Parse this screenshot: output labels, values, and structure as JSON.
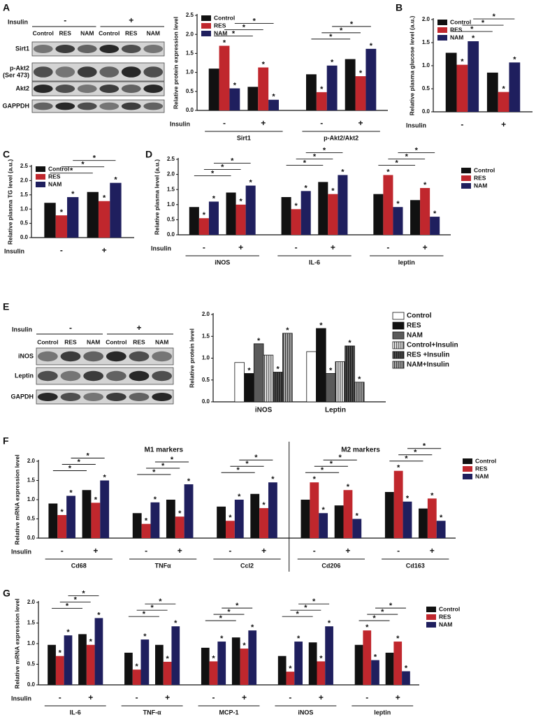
{
  "panel_labels": [
    "A",
    "B",
    "C",
    "D",
    "E",
    "F",
    "G"
  ],
  "blots": [
    {
      "insulin_label": "Insulin",
      "minus": "-",
      "plus": "+",
      "lanes": [
        "Control",
        "RES",
        "NAM",
        "Control",
        "RES",
        "NAM"
      ],
      "rows": [
        "Sirt1",
        [
          "p-Akt2",
          "(Ser 473)"
        ],
        "Akt2",
        "GAPPDH"
      ]
    },
    {
      "insulin_label": "Insulin",
      "minus": "-",
      "plus": "+",
      "lanes": [
        "Control",
        "RES",
        "NAM",
        "Control",
        "RES",
        "NAM"
      ],
      "rows": [
        "iNOS",
        "Leptin",
        "GAPDH"
      ]
    }
  ],
  "chart_data": [
    {
      "type": "bar",
      "y_label": "Relative protein expression level",
      "insulin_label": "Insulin",
      "categories": [
        "-",
        "+",
        "-",
        "+"
      ],
      "groups": [
        "Sirt1",
        "p-Akt2/Akt2"
      ],
      "series": [
        {
          "name": "Control",
          "color": "#111111",
          "values": [
            1.1,
            0.62,
            0.95,
            1.35
          ],
          "starred": false
        },
        {
          "name": "RES",
          "color": "#c0272d",
          "values": [
            1.7,
            1.13,
            0.48,
            0.9
          ],
          "starred": true
        },
        {
          "name": "NAM",
          "color": "#1f1f5e",
          "values": [
            0.58,
            0.28,
            1.18,
            1.62
          ],
          "starred": true
        }
      ],
      "ylim": [
        0,
        2.5
      ],
      "yticks": [
        {
          "value": 0,
          "label": "0.0"
        },
        0.5,
        {
          "value": 1,
          "label": "1.0"
        },
        1.5,
        {
          "value": 2,
          "label": "2.0"
        },
        2.5
      ],
      "legend": "upper left",
      "star": "*",
      "brackets": true
    },
    {
      "type": "bar",
      "y_label": "Relative plasma glucose level (a.u.)",
      "insulin_label": "Insulin",
      "categories": [
        "-",
        "+"
      ],
      "series": [
        {
          "name": "Control",
          "color": "#111111",
          "values": [
            1.28,
            0.85
          ],
          "starred": false
        },
        {
          "name": "RES",
          "color": "#c0272d",
          "values": [
            1.02,
            0.43
          ],
          "starred": true
        },
        {
          "name": "NAM",
          "color": "#1f1f5e",
          "values": [
            1.53,
            1.07
          ],
          "starred": true
        }
      ],
      "ylim": [
        0,
        2.0
      ],
      "yticks": [
        {
          "value": 0,
          "label": "0.0"
        },
        0.5,
        {
          "value": 1,
          "label": "1.0"
        },
        1.5,
        {
          "value": 2,
          "label": "2.0"
        }
      ],
      "legend": "upper left",
      "star": "*",
      "brackets": true
    },
    {
      "type": "bar",
      "y_label": "Relative plasma TG level (a.u.)",
      "insulin_label": "Insulin",
      "categories": [
        "-",
        "+"
      ],
      "series": [
        {
          "name": "Control",
          "color": "#111111",
          "values": [
            1.22,
            1.6
          ],
          "starred": false
        },
        {
          "name": "RES",
          "color": "#c0272d",
          "values": [
            0.78,
            1.28
          ],
          "starred": true
        },
        {
          "name": "NAM",
          "color": "#1f1f5e",
          "values": [
            1.42,
            1.92
          ],
          "starred": true
        }
      ],
      "ylim": [
        0,
        2.5
      ],
      "yticks": [
        {
          "value": 0,
          "label": "0.0"
        },
        0.5,
        {
          "value": 1,
          "label": "1.0"
        },
        1.5,
        {
          "value": 2,
          "label": "2.0"
        },
        2.5
      ],
      "legend": "upper left",
      "star": "*",
      "brackets": true
    },
    {
      "type": "bar",
      "y_label": "Relative plasma level (a.u.)",
      "insulin_label": "Insulin",
      "categories": [
        "-",
        "+",
        "-",
        "+",
        "-",
        "+"
      ],
      "groups": [
        "iNOS",
        "IL-6",
        "leptin"
      ],
      "series": [
        {
          "name": "Control",
          "color": "#111111",
          "values": [
            0.92,
            1.4,
            1.25,
            1.75,
            1.35,
            1.15
          ],
          "starred": false
        },
        {
          "name": "RES",
          "color": "#c0272d",
          "values": [
            0.55,
            1.0,
            0.85,
            1.35,
            1.98,
            1.55
          ],
          "starred": true
        },
        {
          "name": "NAM",
          "color": "#1f1f5e",
          "values": [
            1.1,
            1.63,
            1.45,
            1.98,
            0.92,
            0.6
          ],
          "starred": true
        }
      ],
      "ylim": [
        0,
        2.5
      ],
      "yticks": [
        {
          "value": 0,
          "label": "0.0"
        },
        0.5,
        {
          "value": 1,
          "label": "1.0"
        },
        1.5,
        {
          "value": 2,
          "label": "2.0"
        },
        2.5
      ],
      "legend": "right",
      "star": "*",
      "brackets": true
    },
    {
      "type": "bar",
      "y_label": "Relative protein level",
      "categories": [
        "iNOS",
        "Leptin"
      ],
      "series": [
        {
          "name": "Control",
          "color": "#ffffff",
          "values": [
            0.9,
            1.15
          ],
          "starred": false
        },
        {
          "name": "RES",
          "color": "#111111",
          "values": [
            0.65,
            1.68
          ],
          "starred": true
        },
        {
          "name": "NAM",
          "color": "#5a5a5a",
          "values": [
            1.33,
            0.65
          ],
          "starred": true
        },
        {
          "name": "Control+Insulin",
          "color": "#ffffff",
          "pattern": "stripes",
          "values": [
            1.07,
            0.92
          ],
          "starred": false
        },
        {
          "name": "RES +Insulin",
          "color": "#555555",
          "pattern": "stripes",
          "values": [
            0.68,
            1.28
          ],
          "starred": true
        },
        {
          "name": "NAM+Insulin",
          "color": "#bbbbbb",
          "pattern": "stripes",
          "values": [
            1.57,
            0.45
          ],
          "starred": true
        }
      ],
      "ylim": [
        0,
        2.0
      ],
      "yticks": [
        {
          "value": 0,
          "label": "0.0"
        },
        0.5,
        {
          "value": 1,
          "label": "1.0"
        },
        1.5,
        {
          "value": 2,
          "label": "2.0"
        }
      ],
      "legend": "right",
      "outline": true,
      "star": "*",
      "brackets": false
    },
    {
      "type": "bar",
      "y_label": "Relative mRNA expression level",
      "insulin_label": "Insulin",
      "categories": [
        "-",
        "+",
        "-",
        "+",
        "-",
        "+",
        "-",
        "+",
        "-",
        "+"
      ],
      "groups": [
        "Cd68",
        "TNFα",
        "Ccl2",
        "Cd206",
        "Cd163"
      ],
      "annotations": [
        "M1 markers",
        "M2 markers"
      ],
      "series": [
        {
          "name": "Control",
          "color": "#111111",
          "values": [
            0.9,
            1.25,
            0.65,
            1.0,
            0.82,
            1.15,
            1.0,
            0.85,
            1.2,
            0.77
          ],
          "starred": false
        },
        {
          "name": "RES",
          "color": "#c0272d",
          "values": [
            0.6,
            0.92,
            0.37,
            0.56,
            0.45,
            0.78,
            1.45,
            1.25,
            1.75,
            1.03
          ],
          "starred": true
        },
        {
          "name": "NAM",
          "color": "#1f1f5e",
          "values": [
            1.1,
            1.5,
            0.93,
            1.4,
            1.0,
            1.45,
            0.65,
            0.5,
            0.95,
            0.45
          ],
          "starred": true
        }
      ],
      "ylim": [
        0,
        2.0
      ],
      "yticks": [
        {
          "value": 0,
          "label": "0.0"
        },
        0.5,
        {
          "value": 1,
          "label": "1.0"
        },
        1.5,
        {
          "value": 2,
          "label": "2.0"
        }
      ],
      "legend": "right",
      "star": "*",
      "brackets": true
    },
    {
      "type": "bar",
      "y_label": "Relative mRNA expression level",
      "insulin_label": "Insulin",
      "categories": [
        "-",
        "+",
        "-",
        "+",
        "-",
        "+",
        "-",
        "+",
        "-",
        "+"
      ],
      "groups": [
        "IL-6",
        "TNF-α",
        "MCP-1",
        "iNOS",
        "leptin"
      ],
      "series": [
        {
          "name": "Control",
          "color": "#111111",
          "values": [
            0.97,
            1.23,
            0.78,
            0.97,
            0.9,
            1.15,
            0.7,
            1.03,
            0.97,
            0.78
          ],
          "starred": false
        },
        {
          "name": "RES",
          "color": "#c0272d",
          "values": [
            0.7,
            0.97,
            0.37,
            0.56,
            0.57,
            0.88,
            0.32,
            0.57,
            1.32,
            1.05
          ],
          "starred": true
        },
        {
          "name": "NAM",
          "color": "#1f1f5e",
          "values": [
            1.2,
            1.62,
            1.1,
            1.42,
            1.05,
            1.32,
            1.05,
            1.42,
            0.6,
            0.33
          ],
          "starred": true
        }
      ],
      "ylim": [
        0,
        2.0
      ],
      "yticks": [
        {
          "value": 0,
          "label": "0.0"
        },
        0.5,
        {
          "value": 1,
          "label": "1.0"
        },
        1.5,
        {
          "value": 2,
          "label": "2.0"
        }
      ],
      "legend": "right",
      "star": "*",
      "brackets": true
    }
  ]
}
